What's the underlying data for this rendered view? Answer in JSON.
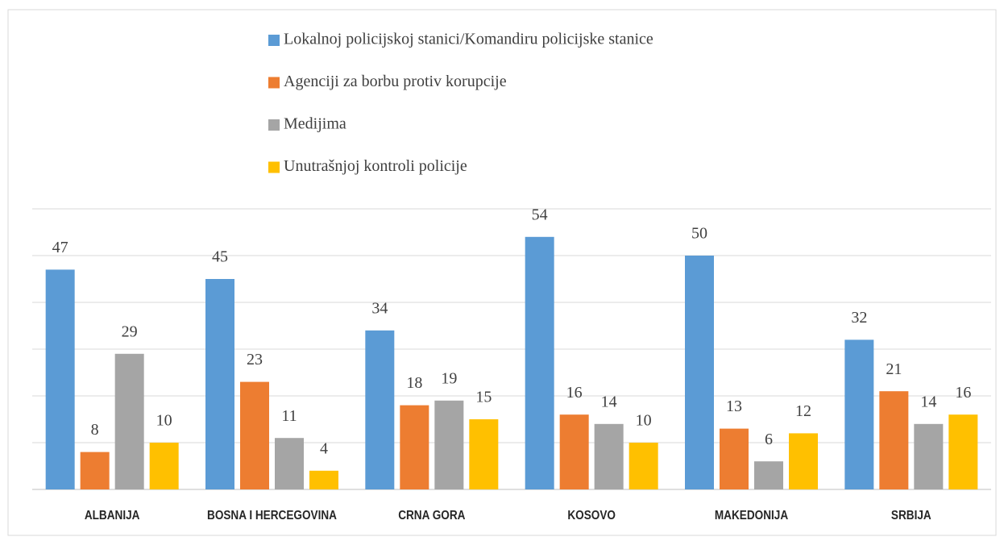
{
  "chart_data": {
    "type": "bar",
    "categories": [
      "ALBANIJA",
      "BOSNA I HERCEGOVINA",
      "CRNA GORA",
      "KOSOVO",
      "MAKEDONIJA",
      "SRBIJA"
    ],
    "series": [
      {
        "name": "Lokalnoj policijskoj stanici/Komandiru policijske stanice",
        "color": "#5b9bd5",
        "values": [
          47,
          45,
          34,
          54,
          50,
          32
        ]
      },
      {
        "name": "Agenciji za borbu protiv korupcije",
        "color": "#ed7d31",
        "values": [
          8,
          23,
          18,
          16,
          13,
          21
        ]
      },
      {
        "name": "Medijima",
        "color": "#a5a5a5",
        "values": [
          29,
          11,
          19,
          14,
          6,
          14
        ]
      },
      {
        "name": "Unutrašnjoj kontroli policije",
        "color": "#ffc000",
        "values": [
          10,
          4,
          15,
          10,
          12,
          16
        ]
      }
    ],
    "ylim": [
      0,
      60
    ],
    "yticks": [
      0,
      10,
      20,
      30,
      40,
      50,
      60
    ],
    "grid": true,
    "legend": "top"
  }
}
